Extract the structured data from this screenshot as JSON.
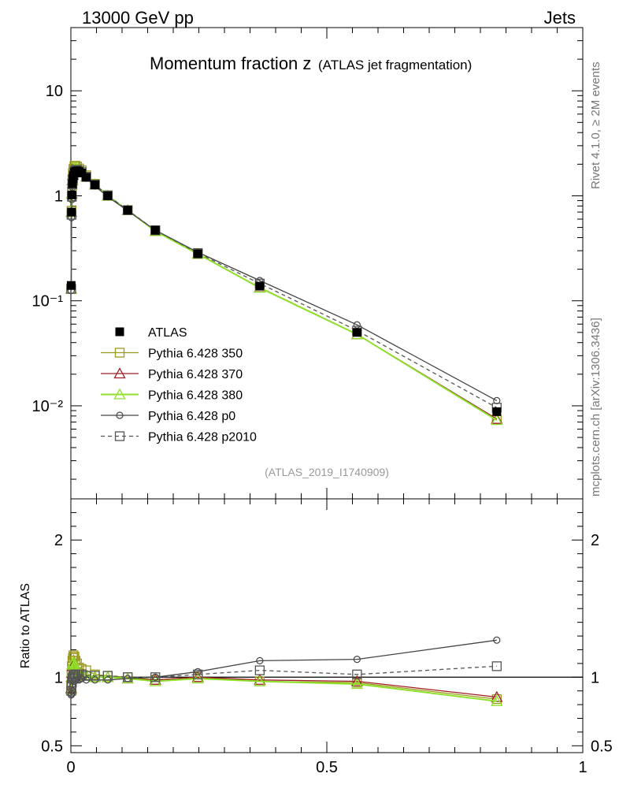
{
  "header": {
    "energy": "13000 GeV pp",
    "process": "Jets"
  },
  "side_labels": {
    "rivet": "Rivet 4.1.0, ≥ 2M events",
    "mcplots": "mcplots.cern.ch [arXiv:1306.3436]"
  },
  "chart_data": {
    "type": "line",
    "title_main": "Momentum fraction z",
    "title_sub": "(ATLAS jet fragmentation)",
    "analysis_id": "(ATLAS_2019_I1740909)",
    "xlabel": "",
    "ylabel": "",
    "ratio_ylabel": "Ratio to ATLAS",
    "xlim": [
      0,
      1
    ],
    "ylim": [
      0.0013,
      40
    ],
    "yscale": "log",
    "ratio_ylim": [
      0.45,
      2.3
    ],
    "x_ticks": [
      {
        "value": 0,
        "label": "0"
      },
      {
        "value": 0.5,
        "label": "0.5"
      },
      {
        "value": 1,
        "label": "1"
      }
    ],
    "y_ticks": [
      {
        "value": 10,
        "label": "10"
      },
      {
        "value": 1,
        "label": "1"
      },
      {
        "value": 0.1,
        "label": "10⁻¹"
      },
      {
        "value": 0.01,
        "label": "10⁻²"
      }
    ],
    "ratio_ticks": [
      {
        "value": 2,
        "label": "2"
      },
      {
        "value": 1,
        "label": "1"
      },
      {
        "value": 0.5,
        "label": "0.5"
      }
    ],
    "x": [
      0.0006,
      0.0012,
      0.002,
      0.003,
      0.004,
      0.005,
      0.007,
      0.009,
      0.012,
      0.016,
      0.021,
      0.03,
      0.047,
      0.072,
      0.111,
      0.165,
      0.248,
      0.369,
      0.559,
      0.832
    ],
    "data": {
      "name": "ATLAS",
      "values": [
        0.14,
        0.7,
        1.02,
        1.3,
        1.45,
        1.55,
        1.67,
        1.72,
        1.73,
        1.7,
        1.65,
        1.5,
        1.27,
        1.0,
        0.73,
        0.47,
        0.28,
        0.138,
        0.05,
        0.0088
      ]
    },
    "series": [
      {
        "name": "Pythia 6.428 350",
        "color": "#9c9a1c",
        "marker": "square-open",
        "dash": "solid",
        "values": [
          0.13,
          0.72,
          1.1,
          1.45,
          1.65,
          1.8,
          1.92,
          1.93,
          1.9,
          1.82,
          1.75,
          1.57,
          1.3,
          1.01,
          0.73,
          0.46,
          0.28,
          0.134,
          0.048,
          0.0074
        ],
        "ratio": [
          0.93,
          1.03,
          1.08,
          1.12,
          1.14,
          1.16,
          1.15,
          1.12,
          1.1,
          1.07,
          1.06,
          1.05,
          1.02,
          1.01,
          1.0,
          0.98,
          1.0,
          0.97,
          0.96,
          0.84
        ]
      },
      {
        "name": "Pythia 6.428 370",
        "color": "#a01c24",
        "marker": "triangle-open",
        "dash": "solid",
        "values": [
          0.13,
          0.7,
          1.05,
          1.4,
          1.58,
          1.7,
          1.8,
          1.83,
          1.8,
          1.75,
          1.69,
          1.52,
          1.28,
          1.0,
          0.73,
          0.46,
          0.28,
          0.134,
          0.048,
          0.0075
        ],
        "ratio": [
          0.92,
          1.0,
          1.03,
          1.08,
          1.09,
          1.1,
          1.08,
          1.06,
          1.04,
          1.03,
          1.02,
          1.01,
          1.0,
          1.0,
          0.99,
          0.98,
          1.0,
          0.98,
          0.97,
          0.855
        ]
      },
      {
        "name": "Pythia 6.428 380",
        "color": "#8ee02a",
        "marker": "triangle-open",
        "dash": "solid",
        "values": [
          0.13,
          0.7,
          1.05,
          1.42,
          1.6,
          1.73,
          1.82,
          1.85,
          1.82,
          1.76,
          1.7,
          1.52,
          1.28,
          1.0,
          0.73,
          0.46,
          0.28,
          0.133,
          0.048,
          0.0073
        ],
        "ratio": [
          0.91,
          1.0,
          1.04,
          1.09,
          1.1,
          1.11,
          1.09,
          1.07,
          1.05,
          1.03,
          1.02,
          1.01,
          1.0,
          1.0,
          0.99,
          0.97,
          0.99,
          0.97,
          0.95,
          0.825
        ]
      },
      {
        "name": "Pythia 6.428 p0",
        "color": "#444444",
        "marker": "circle-open",
        "dash": "solid",
        "values": [
          0.125,
          0.62,
          0.92,
          1.2,
          1.38,
          1.5,
          1.62,
          1.68,
          1.7,
          1.67,
          1.63,
          1.47,
          1.24,
          0.98,
          0.72,
          0.47,
          0.29,
          0.156,
          0.059,
          0.0112
        ],
        "ratio": [
          0.87,
          0.88,
          0.9,
          0.93,
          0.95,
          0.97,
          0.97,
          0.98,
          0.98,
          0.98,
          0.99,
          0.98,
          0.98,
          0.98,
          0.99,
          1.0,
          1.04,
          1.12,
          1.13,
          1.27
        ]
      },
      {
        "name": "Pythia 6.428 p2010",
        "color": "#555555",
        "marker": "square-open",
        "dash": "dashed",
        "values": [
          0.13,
          0.66,
          0.98,
          1.28,
          1.45,
          1.57,
          1.7,
          1.76,
          1.77,
          1.74,
          1.68,
          1.52,
          1.28,
          1.01,
          0.73,
          0.47,
          0.285,
          0.146,
          0.052,
          0.0096
        ],
        "ratio": [
          0.9,
          0.94,
          0.96,
          0.99,
          1.0,
          1.01,
          1.02,
          1.02,
          1.02,
          1.02,
          1.02,
          1.01,
          1.01,
          1.01,
          1.0,
          1.0,
          1.02,
          1.05,
          1.02,
          1.08
        ]
      }
    ]
  }
}
